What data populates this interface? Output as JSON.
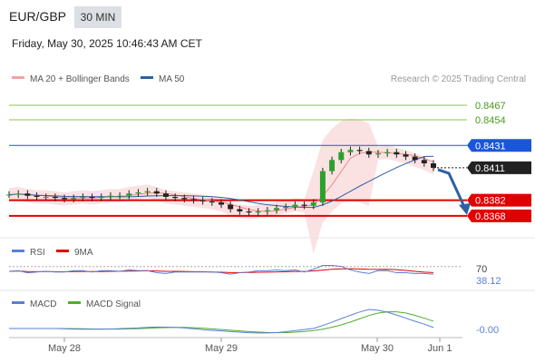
{
  "header": {
    "symbol": "EUR/GBP",
    "timeframe": "30 MIN",
    "datetime": "Friday, May 30, 2025 10:46:43 AM CET"
  },
  "chart_data": [
    {
      "type": "line",
      "panel": "price",
      "legend": [
        {
          "name": "MA 20 + Bollinger Bands",
          "color": "#f4a3a3"
        },
        {
          "name": "MA 50",
          "color": "#2e5fa3"
        }
      ],
      "credit": "Research © 2025 Trading Central",
      "x_ticks": [
        "May 28",
        "May 29",
        "May 30",
        "Jun 1"
      ],
      "ylim": [
        0.835,
        0.848
      ],
      "price_series": [
        0.8387,
        0.8388,
        0.8386,
        0.8385,
        0.8385,
        0.8384,
        0.8383,
        0.8384,
        0.8385,
        0.8384,
        0.8385,
        0.8386,
        0.8386,
        0.8388,
        0.8389,
        0.839,
        0.8388,
        0.8385,
        0.8384,
        0.8383,
        0.8382,
        0.8381,
        0.838,
        0.8378,
        0.8374,
        0.8372,
        0.8371,
        0.8372,
        0.8373,
        0.8375,
        0.8376,
        0.8378,
        0.8377,
        0.838,
        0.8408,
        0.8418,
        0.8425,
        0.8427,
        0.8426,
        0.8423,
        0.8424,
        0.8425,
        0.8423,
        0.8421,
        0.8418,
        0.8415,
        0.8411
      ],
      "levels": [
        {
          "value": 0.8467,
          "label": "0.8467",
          "kind": "target",
          "color": "#8cc63f"
        },
        {
          "value": 0.8454,
          "label": "0.8454",
          "kind": "target",
          "color": "#8cc63f"
        },
        {
          "value": 0.8431,
          "label": "0.8431",
          "kind": "pivot",
          "color": "#1a56db"
        },
        {
          "value": 0.8411,
          "label": "0.8411",
          "kind": "last",
          "color": "#222222"
        },
        {
          "value": 0.8382,
          "label": "0.8382",
          "kind": "support",
          "color": "#e00000"
        },
        {
          "value": 0.8368,
          "label": "0.8368",
          "kind": "support",
          "color": "#e00000"
        }
      ]
    },
    {
      "type": "line",
      "panel": "rsi",
      "legend": [
        {
          "name": "RSI",
          "color": "#5b7fd6"
        },
        {
          "name": "9MA",
          "color": "#e00000"
        }
      ],
      "ylim": [
        0,
        100
      ],
      "levels": [
        {
          "value": 70,
          "label": "70"
        }
      ],
      "last_value_label": "38.12"
    },
    {
      "type": "line",
      "panel": "macd",
      "legend": [
        {
          "name": "MACD",
          "color": "#5b7fd6"
        },
        {
          "name": "MACD Signal",
          "color": "#4caf2a"
        }
      ],
      "last_value_label": "-0.00"
    }
  ]
}
